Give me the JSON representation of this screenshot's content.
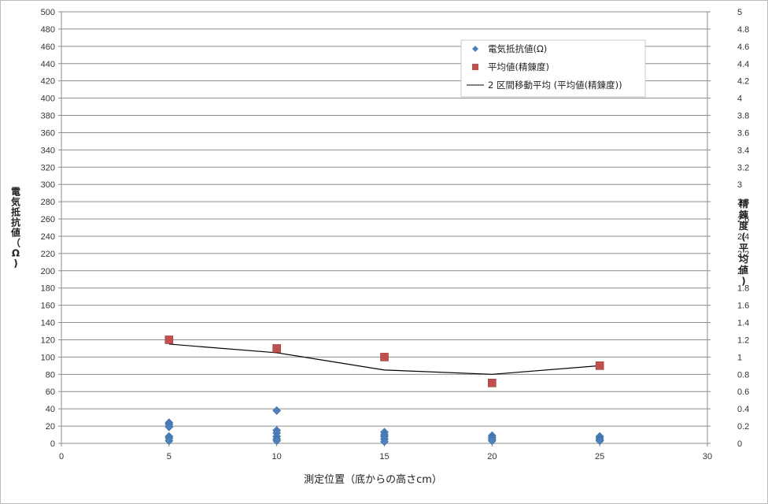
{
  "chart_data": {
    "type": "scatter",
    "title": "",
    "xlabel": "測定位置（底からの高さcm）",
    "ylabel_left_chars": [
      "電",
      "気",
      "抵",
      "抗",
      "値",
      "（",
      "Ω",
      ")"
    ],
    "ylabel_right_chars": [
      "精",
      "錬",
      "度",
      "(",
      "平",
      "均",
      "値",
      ")"
    ],
    "xlim": [
      0,
      30
    ],
    "ylim_left": [
      0,
      500
    ],
    "ylim_right": [
      0,
      5
    ],
    "x_ticks": [
      "0",
      "5",
      "10",
      "15",
      "20",
      "25",
      "30"
    ],
    "y_left_ticks": [
      "0",
      "20",
      "40",
      "60",
      "80",
      "100",
      "120",
      "140",
      "160",
      "180",
      "200",
      "220",
      "240",
      "260",
      "280",
      "300",
      "320",
      "340",
      "360",
      "380",
      "400",
      "420",
      "440",
      "460",
      "480",
      "500"
    ],
    "y_right_ticks": [
      "0",
      "0.2",
      "0.4",
      "0.6",
      "0.8",
      "1",
      "1.2",
      "1.4",
      "1.6",
      "1.8",
      "2",
      "2.2",
      "2.4",
      "2.6",
      "2.8",
      "3",
      "3.2",
      "3.4",
      "3.6",
      "3.8",
      "4",
      "4.2",
      "4.4",
      "4.6",
      "4.8",
      "5"
    ],
    "grid": true,
    "legend_position": "top-right",
    "series": [
      {
        "name": "電気抵抗値(Ω)",
        "axis": "left",
        "marker": "diamond",
        "color": "#4f81bd",
        "points": [
          [
            5,
            24
          ],
          [
            5,
            22
          ],
          [
            5,
            19
          ],
          [
            5,
            8
          ],
          [
            5,
            6
          ],
          [
            5,
            3
          ],
          [
            10,
            38
          ],
          [
            10,
            15
          ],
          [
            10,
            12
          ],
          [
            10,
            8
          ],
          [
            10,
            5
          ],
          [
            10,
            3
          ],
          [
            15,
            13
          ],
          [
            15,
            10
          ],
          [
            15,
            8
          ],
          [
            15,
            5
          ],
          [
            15,
            2
          ],
          [
            20,
            9
          ],
          [
            20,
            7
          ],
          [
            20,
            5
          ],
          [
            20,
            3
          ],
          [
            25,
            8
          ],
          [
            25,
            6
          ],
          [
            25,
            4
          ],
          [
            25,
            3
          ]
        ]
      },
      {
        "name": "平均値(精錬度)",
        "axis": "right",
        "marker": "square",
        "color": "#c0504d",
        "points": [
          [
            5,
            1.2
          ],
          [
            10,
            1.1
          ],
          [
            15,
            1.0
          ],
          [
            20,
            0.7
          ],
          [
            25,
            0.9
          ]
        ]
      },
      {
        "name": "2 区間移動平均 (平均値(精錬度))",
        "axis": "right",
        "marker": "line",
        "color": "#000000",
        "points": [
          [
            5,
            1.15
          ],
          [
            10,
            1.05
          ],
          [
            15,
            0.85
          ],
          [
            20,
            0.8
          ],
          [
            25,
            0.9
          ]
        ]
      }
    ]
  }
}
